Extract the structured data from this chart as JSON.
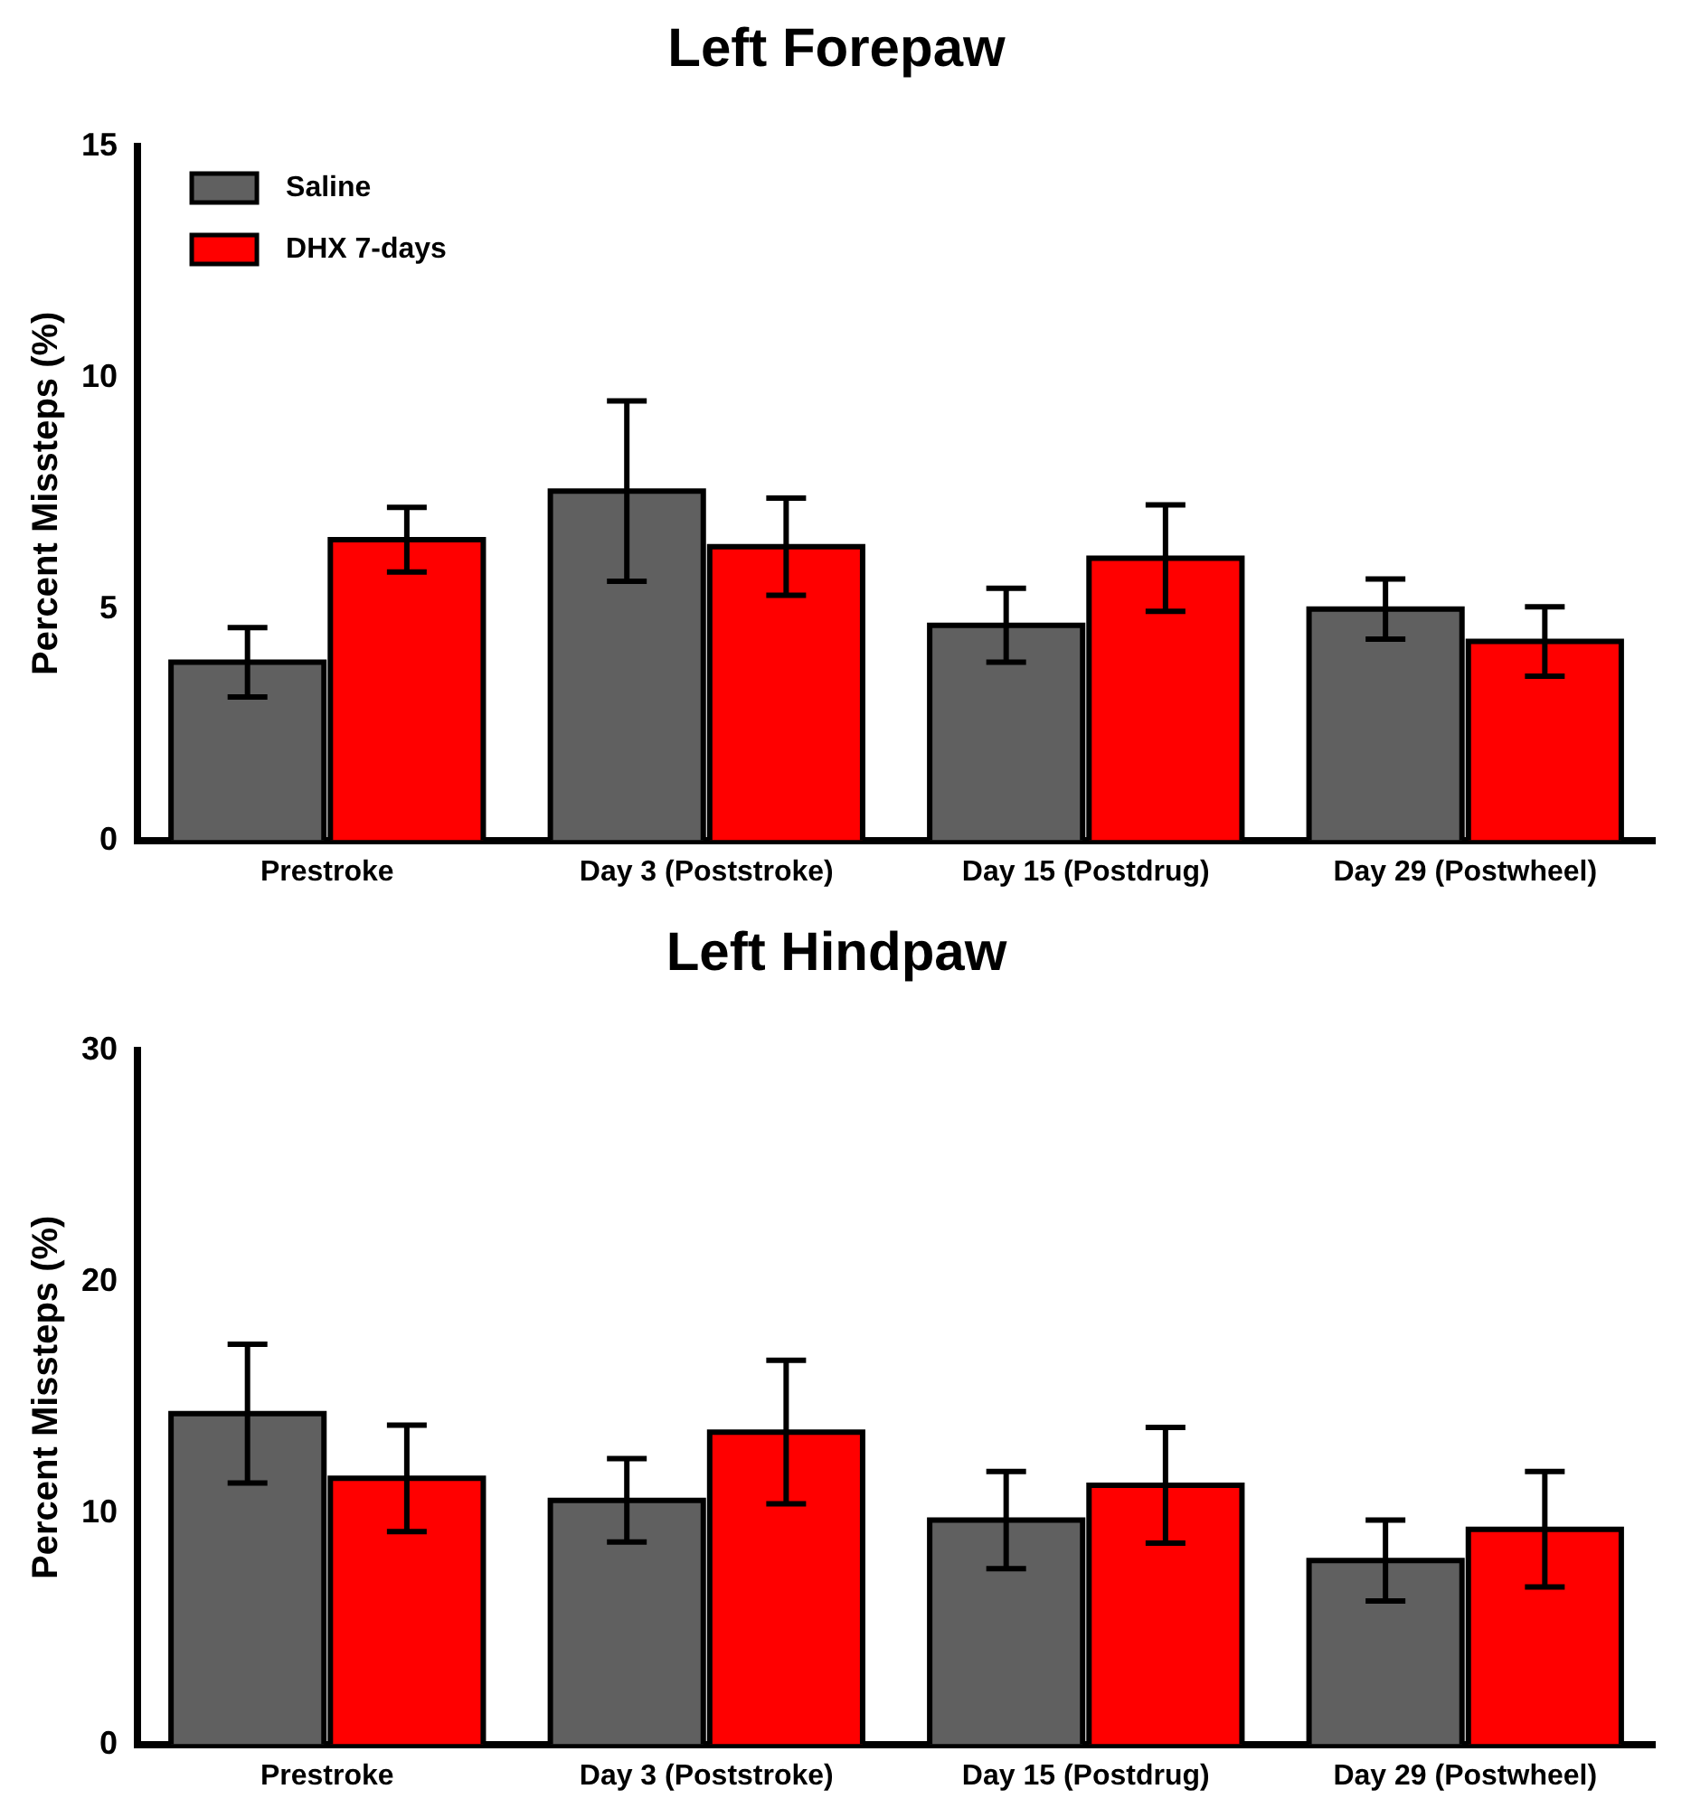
{
  "chart_data": [
    {
      "type": "bar",
      "title": "Left Forepaw",
      "ylabel": "Percent Missteps (%)",
      "categories": [
        "Prestroke",
        "Day 3 (Poststroke)",
        "Day 15 (Postdrug)",
        "Day 29 (Postwheel)"
      ],
      "series": [
        {
          "name": "Saline",
          "color": "#606060",
          "values": [
            3.85,
            7.55,
            4.65,
            5.0
          ],
          "errors": [
            0.75,
            1.95,
            0.8,
            0.65
          ]
        },
        {
          "name": "DHX 7-days",
          "color": "#ff0000",
          "values": [
            6.5,
            6.35,
            6.1,
            4.3
          ],
          "errors": [
            0.7,
            1.05,
            1.15,
            0.75
          ]
        }
      ],
      "ylim": [
        0,
        15
      ],
      "yticks": [
        0,
        5,
        10,
        15
      ],
      "grid": false,
      "legend": "top left"
    },
    {
      "type": "bar",
      "title": "Left Hindpaw",
      "ylabel": "Percent Missteps (%)",
      "categories": [
        "Prestroke",
        "Day 3 (Poststroke)",
        "Day 15 (Postdrug)",
        "Day 29 (Postwheel)"
      ],
      "series": [
        {
          "color": "#606060",
          "values": [
            14.3,
            10.55,
            9.7,
            7.95
          ],
          "errors": [
            3.0,
            1.8,
            2.1,
            1.75
          ]
        },
        {
          "color": "#ff0000",
          "values": [
            11.5,
            13.5,
            11.2,
            9.3
          ],
          "errors": [
            2.3,
            3.1,
            2.5,
            2.5
          ]
        }
      ],
      "ylim": [
        0,
        30
      ],
      "yticks": [
        0,
        10,
        20,
        30
      ],
      "grid": false,
      "legend": false
    }
  ]
}
